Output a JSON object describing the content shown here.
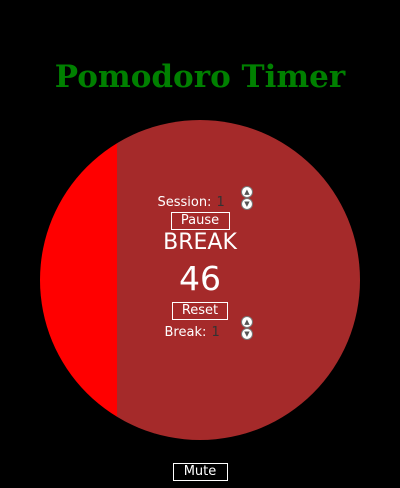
{
  "app": {
    "title": "Pomodoro Timer"
  },
  "timer": {
    "mode": "BREAK",
    "remaining": "46",
    "progress_fraction": 0.76
  },
  "session": {
    "label": "Session:",
    "value": "1"
  },
  "break_setting": {
    "label": "Break:",
    "value": "1"
  },
  "controls": {
    "pause_label": "Pause",
    "reset_label": "Reset",
    "mute_label": "Mute"
  },
  "icons": {
    "increment": "chevron-up-icon",
    "decrement": "chevron-down-icon"
  },
  "colors": {
    "background": "#000000",
    "title": "#008000",
    "dial_elapsed": "#a52a2a",
    "dial_remaining": "#ff0000",
    "text": "#ffffff"
  }
}
